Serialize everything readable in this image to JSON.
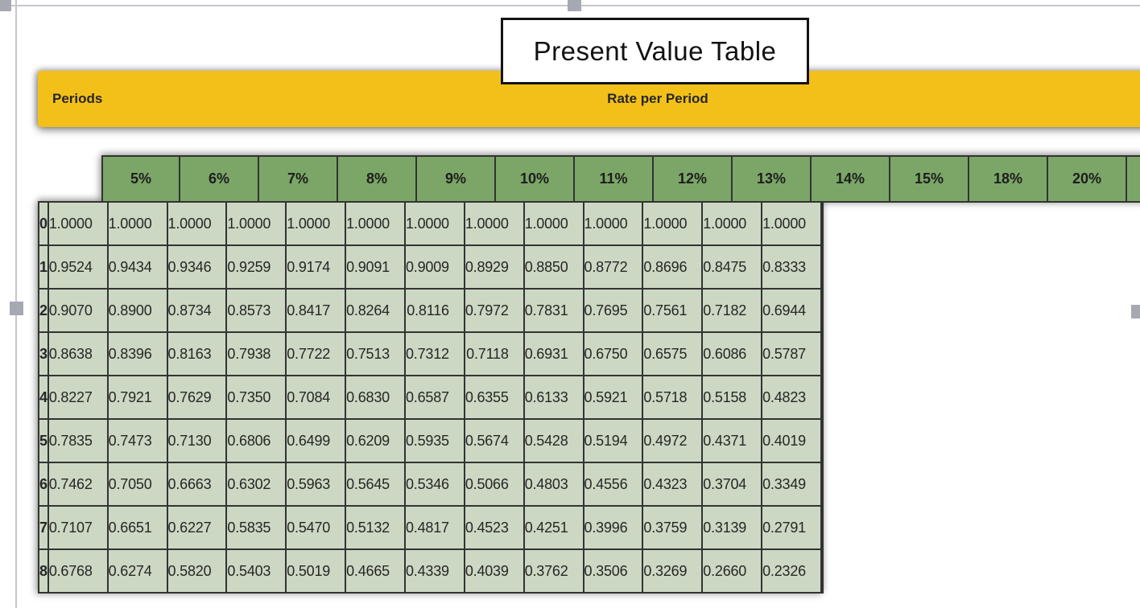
{
  "editor": {
    "selection_handles": [
      "top-left",
      "top-center",
      "middle-left",
      "middle-right"
    ]
  },
  "colors": {
    "band_yellow": "#f3c01a",
    "header_green": "#7ba667",
    "cell_green": "#ccd8c3",
    "border_dark": "#333333",
    "handle_gray": "#a6a9b1",
    "frame_gray": "#c5c7cd"
  },
  "chart_data": {
    "type": "table",
    "title": "Present Value Table",
    "corner_label": "Periods",
    "group_header": "Rate per Period",
    "columns": [
      "5%",
      "6%",
      "7%",
      "8%",
      "9%",
      "10%",
      "11%",
      "12%",
      "13%",
      "14%",
      "15%",
      "18%",
      "20%"
    ],
    "row_labels": [
      "0",
      "1",
      "2",
      "3",
      "4",
      "5",
      "6",
      "7",
      "8"
    ],
    "rows": [
      [
        "1.0000",
        "1.0000",
        "1.0000",
        "1.0000",
        "1.0000",
        "1.0000",
        "1.0000",
        "1.0000",
        "1.0000",
        "1.0000",
        "1.0000",
        "1.0000",
        "1.0000"
      ],
      [
        "0.9524",
        "0.9434",
        "0.9346",
        "0.9259",
        "0.9174",
        "0.9091",
        "0.9009",
        "0.8929",
        "0.8850",
        "0.8772",
        "0.8696",
        "0.8475",
        "0.8333"
      ],
      [
        "0.9070",
        "0.8900",
        "0.8734",
        "0.8573",
        "0.8417",
        "0.8264",
        "0.8116",
        "0.7972",
        "0.7831",
        "0.7695",
        "0.7561",
        "0.7182",
        "0.6944"
      ],
      [
        "0.8638",
        "0.8396",
        "0.8163",
        "0.7938",
        "0.7722",
        "0.7513",
        "0.7312",
        "0.7118",
        "0.6931",
        "0.6750",
        "0.6575",
        "0.6086",
        "0.5787"
      ],
      [
        "0.8227",
        "0.7921",
        "0.7629",
        "0.7350",
        "0.7084",
        "0.6830",
        "0.6587",
        "0.6355",
        "0.6133",
        "0.5921",
        "0.5718",
        "0.5158",
        "0.4823"
      ],
      [
        "0.7835",
        "0.7473",
        "0.7130",
        "0.6806",
        "0.6499",
        "0.6209",
        "0.5935",
        "0.5674",
        "0.5428",
        "0.5194",
        "0.4972",
        "0.4371",
        "0.4019"
      ],
      [
        "0.7462",
        "0.7050",
        "0.6663",
        "0.6302",
        "0.5963",
        "0.5645",
        "0.5346",
        "0.5066",
        "0.4803",
        "0.4556",
        "0.4323",
        "0.3704",
        "0.3349"
      ],
      [
        "0.7107",
        "0.6651",
        "0.6227",
        "0.5835",
        "0.5470",
        "0.5132",
        "0.4817",
        "0.4523",
        "0.4251",
        "0.3996",
        "0.3759",
        "0.3139",
        "0.2791"
      ],
      [
        "0.6768",
        "0.6274",
        "0.5820",
        "0.5403",
        "0.5019",
        "0.4665",
        "0.4339",
        "0.4039",
        "0.3762",
        "0.3506",
        "0.3269",
        "0.2660",
        "0.2326"
      ]
    ],
    "layout_hints": {
      "right_edge_cropped": true,
      "header_row_position": "top",
      "period_column_position": "left"
    }
  }
}
